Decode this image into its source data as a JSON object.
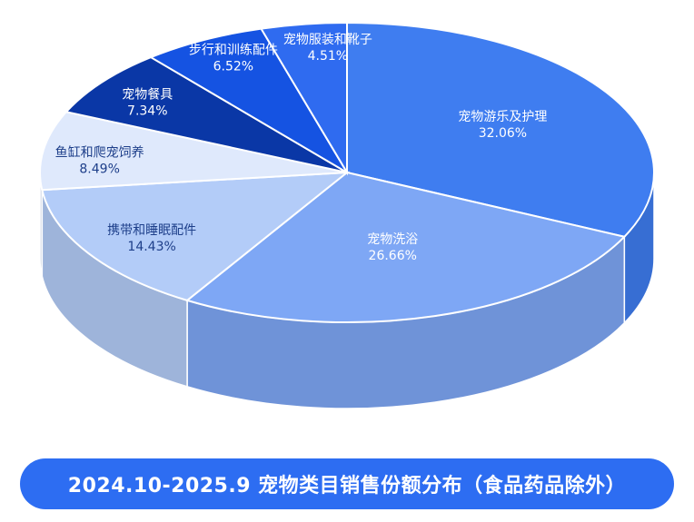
{
  "chart_data": {
    "type": "pie",
    "title": "2024.10-2025.9 宠物类目销售份额分布（食品药品除外）",
    "unit": "%",
    "slices": [
      {
        "label": "宠物游乐及护理",
        "value": 32.06,
        "value_text": "32.06%",
        "color": "#3f7df0",
        "label_color": "#ffffff"
      },
      {
        "label": "宠物洗浴",
        "value": 26.66,
        "value_text": "26.66%",
        "color": "#7ea7f5",
        "label_color": "#ffffff"
      },
      {
        "label": "携带和睡眠配件",
        "value": 14.43,
        "value_text": "14.43%",
        "color": "#b3ccf8",
        "label_color": "#1e3f8a"
      },
      {
        "label": "鱼缸和爬宠饲养",
        "value": 8.49,
        "value_text": "8.49%",
        "color": "#dfe9fc",
        "label_color": "#1e3f8a"
      },
      {
        "label": "宠物餐具",
        "value": 7.34,
        "value_text": "7.34%",
        "color": "#0a37a6",
        "label_color": "#ffffff"
      },
      {
        "label": "步行和训练配件",
        "value": 6.52,
        "value_text": "6.52%",
        "color": "#1553e2",
        "label_color": "#ffffff"
      },
      {
        "label": "宠物服装和靴子",
        "value": 4.51,
        "value_text": "4.51%",
        "color": "#2f6bf0",
        "label_color": "#ffffff"
      }
    ],
    "legend": "none",
    "style": "3d-pie"
  }
}
